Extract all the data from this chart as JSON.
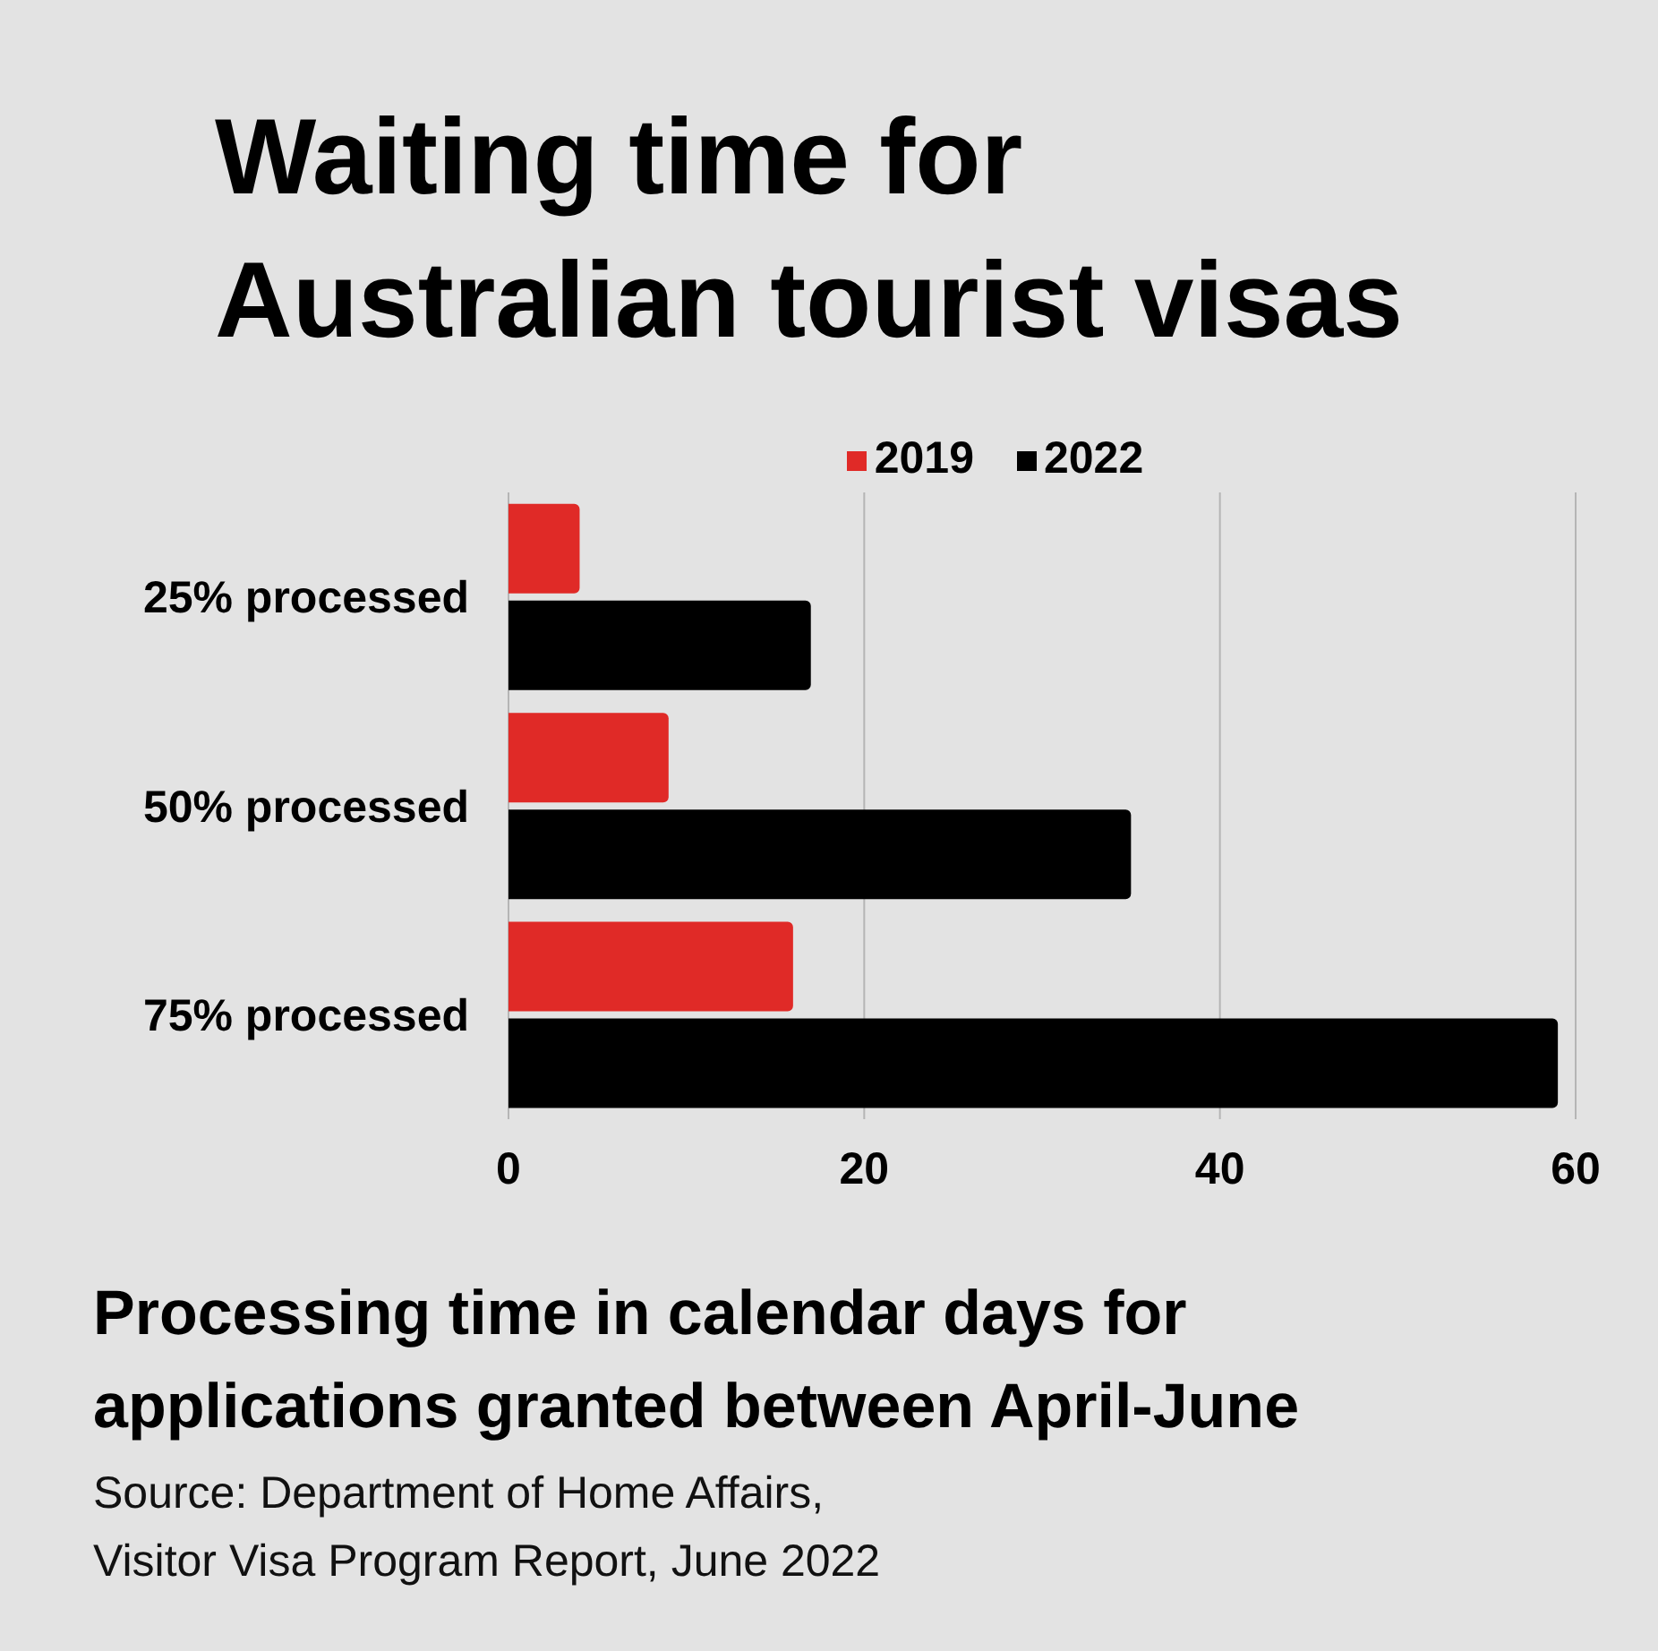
{
  "chart_data": {
    "type": "bar",
    "orientation": "horizontal",
    "title": "Waiting time for Australian tourist visas",
    "xlabel": "Processing time in calendar days for applications granted between April-June",
    "annotations": [
      "Source: Department of Home Affairs, Visitor Visa Program Report, June 2022"
    ],
    "categories": [
      "25% processed",
      "50% processed",
      "75% processed"
    ],
    "series": [
      {
        "name": "2019",
        "color": "#e02a27",
        "values": [
          4,
          9,
          16
        ]
      },
      {
        "name": "2022",
        "color": "#000000",
        "values": [
          17,
          35,
          59
        ]
      }
    ],
    "xlim": [
      0,
      60
    ],
    "xticks": [
      0,
      20,
      40,
      60
    ],
    "grid": "x",
    "legend": "top"
  }
}
